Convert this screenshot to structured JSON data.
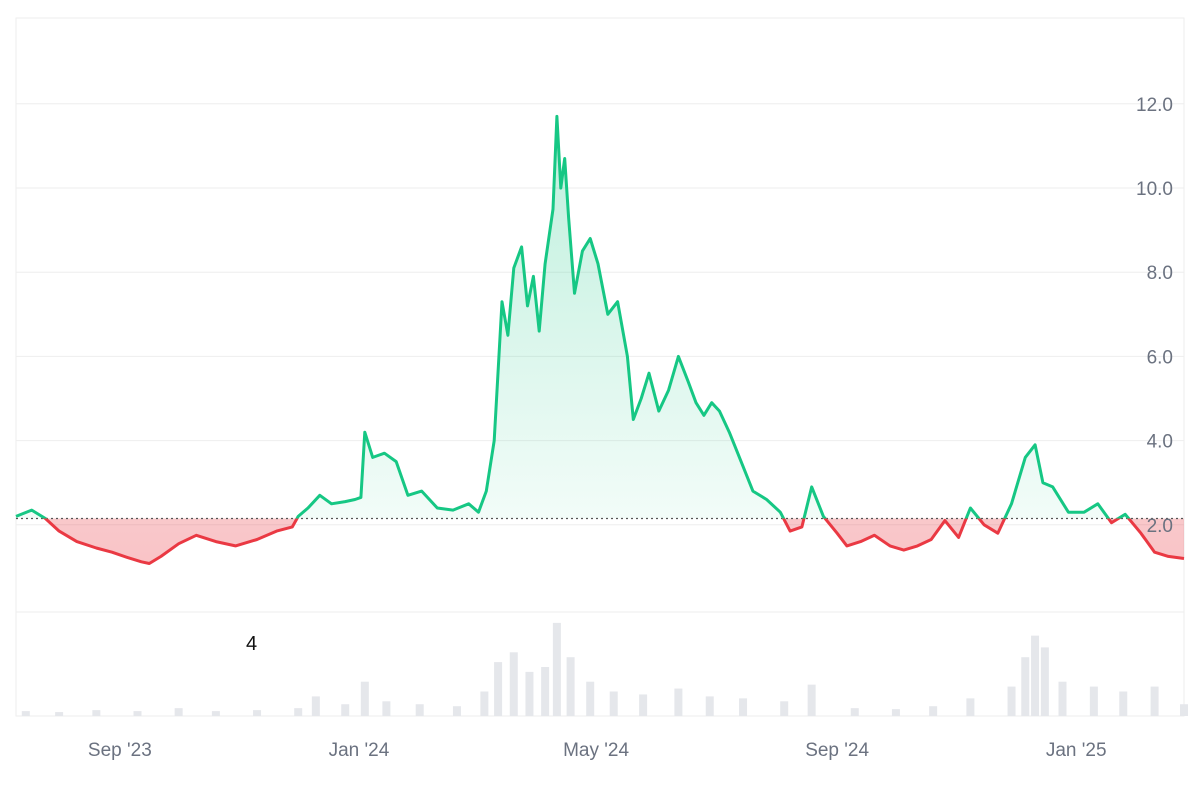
{
  "chart_data": {
    "type": "area",
    "title": "",
    "xlabel": "",
    "ylabel": "",
    "baseline": 2.15,
    "ylim": [
      0,
      13.5
    ],
    "y_ticks": [
      {
        "value": 2.0,
        "label": "2.0"
      },
      {
        "value": 4.0,
        "label": "4.0"
      },
      {
        "value": 6.0,
        "label": "6.0"
      },
      {
        "value": 8.0,
        "label": "8.0"
      },
      {
        "value": 10.0,
        "label": "10.0"
      },
      {
        "value": 12.0,
        "label": "12.0"
      }
    ],
    "x_ticks": [
      {
        "date": "2023-09-01",
        "label": "Sep '23"
      },
      {
        "date": "2024-01-01",
        "label": "Jan '24"
      },
      {
        "date": "2024-05-01",
        "label": "May '24"
      },
      {
        "date": "2024-09-01",
        "label": "Sep '24"
      },
      {
        "date": "2025-01-01",
        "label": "Jan '25"
      }
    ],
    "xlim": [
      "2023-07-10",
      "2025-02-25"
    ],
    "series": [
      {
        "points": [
          [
            "2023-07-10",
            2.2
          ],
          [
            "2023-07-18",
            2.35
          ],
          [
            "2023-07-25",
            2.15
          ],
          [
            "2023-08-01",
            1.85
          ],
          [
            "2023-08-10",
            1.6
          ],
          [
            "2023-08-20",
            1.45
          ],
          [
            "2023-08-28",
            1.35
          ],
          [
            "2023-09-05",
            1.22
          ],
          [
            "2023-09-12",
            1.12
          ],
          [
            "2023-09-16",
            1.08
          ],
          [
            "2023-09-22",
            1.25
          ],
          [
            "2023-10-01",
            1.55
          ],
          [
            "2023-10-10",
            1.75
          ],
          [
            "2023-10-20",
            1.6
          ],
          [
            "2023-10-30",
            1.5
          ],
          [
            "2023-11-10",
            1.65
          ],
          [
            "2023-11-20",
            1.85
          ],
          [
            "2023-11-28",
            1.95
          ],
          [
            "2023-12-01",
            2.2
          ],
          [
            "2023-12-06",
            2.4
          ],
          [
            "2023-12-12",
            2.7
          ],
          [
            "2023-12-18",
            2.5
          ],
          [
            "2023-12-25",
            2.55
          ],
          [
            "2023-12-30",
            2.6
          ],
          [
            "2024-01-02",
            2.65
          ],
          [
            "2024-01-04",
            4.2
          ],
          [
            "2024-01-08",
            3.6
          ],
          [
            "2024-01-14",
            3.7
          ],
          [
            "2024-01-20",
            3.5
          ],
          [
            "2024-01-26",
            2.7
          ],
          [
            "2024-02-02",
            2.8
          ],
          [
            "2024-02-10",
            2.4
          ],
          [
            "2024-02-18",
            2.35
          ],
          [
            "2024-02-26",
            2.5
          ],
          [
            "2024-03-02",
            2.3
          ],
          [
            "2024-03-06",
            2.8
          ],
          [
            "2024-03-10",
            4.0
          ],
          [
            "2024-03-14",
            7.3
          ],
          [
            "2024-03-17",
            6.5
          ],
          [
            "2024-03-20",
            8.1
          ],
          [
            "2024-03-24",
            8.6
          ],
          [
            "2024-03-27",
            7.2
          ],
          [
            "2024-03-30",
            7.9
          ],
          [
            "2024-04-02",
            6.6
          ],
          [
            "2024-04-05",
            8.2
          ],
          [
            "2024-04-09",
            9.5
          ],
          [
            "2024-04-11",
            11.7
          ],
          [
            "2024-04-13",
            10.0
          ],
          [
            "2024-04-15",
            10.7
          ],
          [
            "2024-04-17",
            9.3
          ],
          [
            "2024-04-20",
            7.5
          ],
          [
            "2024-04-24",
            8.5
          ],
          [
            "2024-04-28",
            8.8
          ],
          [
            "2024-05-02",
            8.2
          ],
          [
            "2024-05-07",
            7.0
          ],
          [
            "2024-05-12",
            7.3
          ],
          [
            "2024-05-17",
            6.0
          ],
          [
            "2024-05-20",
            4.5
          ],
          [
            "2024-05-24",
            5.0
          ],
          [
            "2024-05-28",
            5.6
          ],
          [
            "2024-06-02",
            4.7
          ],
          [
            "2024-06-07",
            5.2
          ],
          [
            "2024-06-12",
            6.0
          ],
          [
            "2024-06-17",
            5.4
          ],
          [
            "2024-06-21",
            4.9
          ],
          [
            "2024-06-25",
            4.6
          ],
          [
            "2024-06-29",
            4.9
          ],
          [
            "2024-07-03",
            4.7
          ],
          [
            "2024-07-08",
            4.2
          ],
          [
            "2024-07-14",
            3.5
          ],
          [
            "2024-07-20",
            2.8
          ],
          [
            "2024-07-27",
            2.6
          ],
          [
            "2024-08-03",
            2.3
          ],
          [
            "2024-08-08",
            1.85
          ],
          [
            "2024-08-14",
            1.95
          ],
          [
            "2024-08-19",
            2.9
          ],
          [
            "2024-08-25",
            2.2
          ],
          [
            "2024-09-01",
            1.8
          ],
          [
            "2024-09-06",
            1.5
          ],
          [
            "2024-09-13",
            1.6
          ],
          [
            "2024-09-20",
            1.75
          ],
          [
            "2024-09-28",
            1.5
          ],
          [
            "2024-10-05",
            1.4
          ],
          [
            "2024-10-12",
            1.5
          ],
          [
            "2024-10-19",
            1.65
          ],
          [
            "2024-10-26",
            2.1
          ],
          [
            "2024-11-02",
            1.7
          ],
          [
            "2024-11-08",
            2.4
          ],
          [
            "2024-11-15",
            2.0
          ],
          [
            "2024-11-22",
            1.8
          ],
          [
            "2024-11-29",
            2.5
          ],
          [
            "2024-12-06",
            3.6
          ],
          [
            "2024-12-11",
            3.9
          ],
          [
            "2024-12-15",
            3.0
          ],
          [
            "2024-12-20",
            2.9
          ],
          [
            "2024-12-28",
            2.3
          ],
          [
            "2025-01-05",
            2.3
          ],
          [
            "2025-01-12",
            2.5
          ],
          [
            "2025-01-19",
            2.05
          ],
          [
            "2025-01-26",
            2.25
          ],
          [
            "2025-02-03",
            1.8
          ],
          [
            "2025-02-10",
            1.35
          ],
          [
            "2025-02-17",
            1.25
          ],
          [
            "2025-02-25",
            1.2
          ]
        ]
      }
    ],
    "volume": [
      [
        "2023-07-15",
        0.05
      ],
      [
        "2023-08-01",
        0.04
      ],
      [
        "2023-08-20",
        0.06
      ],
      [
        "2023-09-10",
        0.05
      ],
      [
        "2023-10-01",
        0.08
      ],
      [
        "2023-10-20",
        0.05
      ],
      [
        "2023-11-10",
        0.06
      ],
      [
        "2023-12-01",
        0.08
      ],
      [
        "2023-12-10",
        0.2
      ],
      [
        "2023-12-25",
        0.12
      ],
      [
        "2024-01-04",
        0.35
      ],
      [
        "2024-01-15",
        0.15
      ],
      [
        "2024-02-01",
        0.12
      ],
      [
        "2024-02-20",
        0.1
      ],
      [
        "2024-03-05",
        0.25
      ],
      [
        "2024-03-12",
        0.55
      ],
      [
        "2024-03-20",
        0.65
      ],
      [
        "2024-03-28",
        0.45
      ],
      [
        "2024-04-05",
        0.5
      ],
      [
        "2024-04-11",
        0.95
      ],
      [
        "2024-04-18",
        0.6
      ],
      [
        "2024-04-28",
        0.35
      ],
      [
        "2024-05-10",
        0.25
      ],
      [
        "2024-05-25",
        0.22
      ],
      [
        "2024-06-12",
        0.28
      ],
      [
        "2024-06-28",
        0.2
      ],
      [
        "2024-07-15",
        0.18
      ],
      [
        "2024-08-05",
        0.15
      ],
      [
        "2024-08-19",
        0.32
      ],
      [
        "2024-09-10",
        0.08
      ],
      [
        "2024-10-01",
        0.07
      ],
      [
        "2024-10-20",
        0.1
      ],
      [
        "2024-11-08",
        0.18
      ],
      [
        "2024-11-29",
        0.3
      ],
      [
        "2024-12-06",
        0.6
      ],
      [
        "2024-12-11",
        0.82
      ],
      [
        "2024-12-16",
        0.7
      ],
      [
        "2024-12-25",
        0.35
      ],
      [
        "2025-01-10",
        0.3
      ],
      [
        "2025-01-25",
        0.25
      ],
      [
        "2025-02-10",
        0.3
      ],
      [
        "2025-02-25",
        0.12
      ]
    ],
    "colors": {
      "up_line": "#16c784",
      "down_line": "#ea3943",
      "up_fill": "#16c784",
      "down_fill": "#ea3943",
      "volume": "#e5e7eb",
      "grid": "#eeeeee",
      "baseline": "#555555"
    }
  },
  "annotation_text": "4"
}
